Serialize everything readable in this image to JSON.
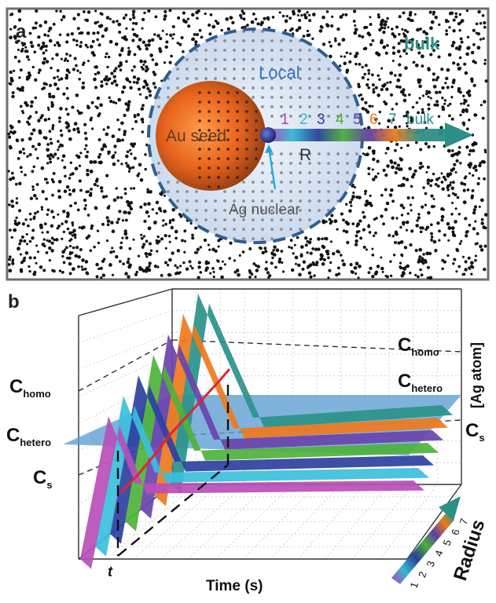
{
  "panel_a": {
    "letter": "a",
    "bulk_label": "bulk",
    "local_label": "Local",
    "seed_label": "Au seed",
    "radius_label": "R",
    "nuclear_label": "Ag nuclear",
    "scale_labels": [
      {
        "text": "1",
        "color": "#b040b0"
      },
      {
        "text": "2",
        "color": "#36b8d6"
      },
      {
        "text": "3",
        "color": "#2b3f9a"
      },
      {
        "text": "4",
        "color": "#4caf3a"
      },
      {
        "text": "5",
        "color": "#5e3fa5"
      },
      {
        "text": "6",
        "color": "#ef7a1c"
      },
      {
        "text": "7",
        "color": "#2a8f86"
      },
      {
        "text": "bulk",
        "color": "#2a8f86"
      }
    ],
    "colors": {
      "frame": "#6f6f6f",
      "local_fill": "#d4e0ef",
      "local_ring": "#2f5f8f",
      "seed": "#e8641c",
      "arrow": "#2a8f86"
    }
  },
  "panel_b": {
    "letter": "b",
    "x_axis_label": "Time (s)",
    "t_label": "t",
    "y_axis_label": "[Ag atom]",
    "depth_axis_label": "Radius",
    "depth_ticks": [
      "1",
      "2",
      "3",
      "4",
      "5",
      "6",
      "7"
    ],
    "levels": [
      {
        "key": "C",
        "sub": "homo",
        "position": "left"
      },
      {
        "key": "C",
        "sub": "hetero",
        "position": "left"
      },
      {
        "key": "C",
        "sub": "s",
        "position": "left"
      },
      {
        "key": "C",
        "sub": "homo",
        "position": "right"
      },
      {
        "key": "C",
        "sub": "hetero",
        "position": "right"
      },
      {
        "key": "C",
        "sub": "s",
        "position": "right"
      }
    ],
    "ribbon_colors": [
      "#b84fb9",
      "#3bbfdc",
      "#2e40a1",
      "#4fb23b",
      "#6a43ad",
      "#ef7a1c",
      "#2a938a"
    ],
    "colors": {
      "hetero_plane": "#5b9ed1",
      "trend_line": "#e0262d",
      "grid": "#c8c8c8"
    }
  }
}
